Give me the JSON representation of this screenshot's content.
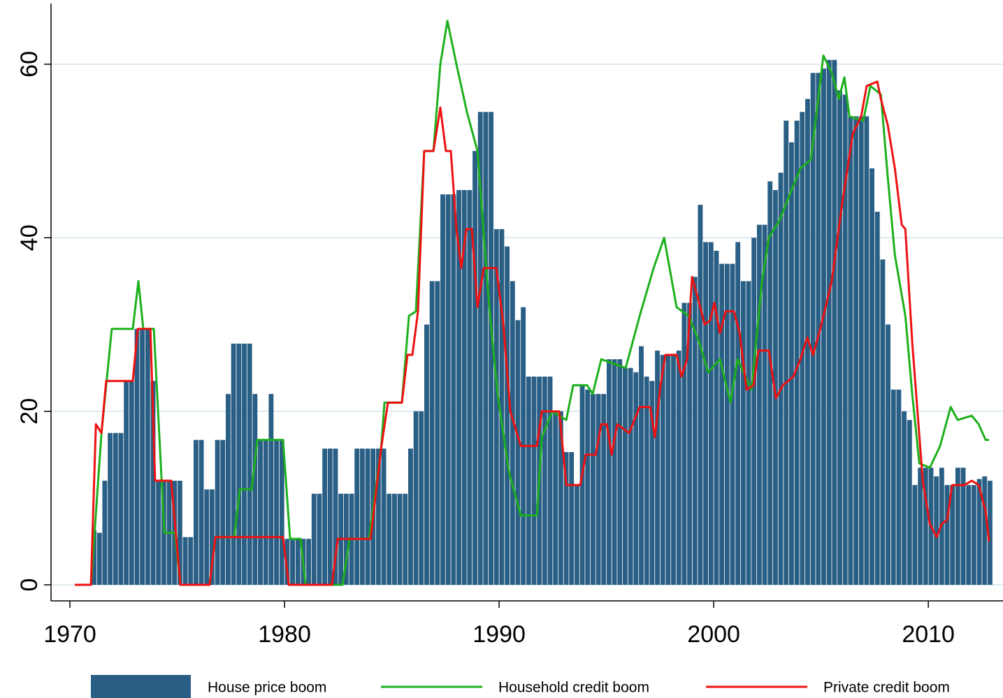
{
  "chart_data": {
    "type": "combo",
    "xlim": [
      1969.12,
      2013.48
    ],
    "xticks": [
      1970,
      1980,
      1990,
      2000,
      2010
    ],
    "ylim": [
      -1.85,
      67
    ],
    "yticks": [
      0,
      20,
      40,
      60
    ],
    "grid": true,
    "legend": "bottom",
    "series": [
      {
        "name": "House price boom",
        "type": "bar",
        "color": "#2a5f85",
        "x": [
          1971,
          1971.25,
          1971.5,
          1971.75,
          1972,
          1972.25,
          1972.5,
          1972.75,
          1973,
          1973.25,
          1973.5,
          1973.75,
          1974,
          1974.25,
          1974.5,
          1974.75,
          1975,
          1975.25,
          1975.5,
          1975.75,
          1976,
          1976.25,
          1976.5,
          1976.75,
          1977,
          1977.25,
          1977.5,
          1977.75,
          1978,
          1978.25,
          1978.5,
          1978.75,
          1979,
          1979.25,
          1979.5,
          1979.75,
          1980,
          1980.25,
          1980.5,
          1980.75,
          1981,
          1981.25,
          1981.5,
          1981.75,
          1982,
          1982.25,
          1982.5,
          1982.75,
          1983,
          1983.25,
          1983.5,
          1983.75,
          1984,
          1984.25,
          1984.5,
          1984.75,
          1985,
          1985.25,
          1985.5,
          1985.75,
          1986,
          1986.25,
          1986.5,
          1986.75,
          1987,
          1987.25,
          1987.5,
          1987.75,
          1988,
          1988.25,
          1988.5,
          1988.75,
          1989,
          1989.25,
          1989.5,
          1989.75,
          1990,
          1990.25,
          1990.5,
          1990.75,
          1991,
          1991.25,
          1991.5,
          1991.75,
          1992,
          1992.25,
          1992.5,
          1992.75,
          1993,
          1993.25,
          1993.5,
          1993.75,
          1994,
          1994.25,
          1994.5,
          1994.75,
          1995,
          1995.25,
          1995.5,
          1995.75,
          1996,
          1996.25,
          1996.5,
          1996.75,
          1997,
          1997.25,
          1997.5,
          1997.75,
          1998,
          1998.25,
          1998.5,
          1998.75,
          1999,
          1999.25,
          1999.5,
          1999.75,
          2000,
          2000.25,
          2000.5,
          2000.75,
          2001,
          2001.25,
          2001.5,
          2001.75,
          2002,
          2002.25,
          2002.5,
          2002.75,
          2003,
          2003.25,
          2003.5,
          2003.75,
          2004,
          2004.25,
          2004.5,
          2004.75,
          2005,
          2005.25,
          2005.5,
          2005.75,
          2006,
          2006.25,
          2006.5,
          2006.75,
          2007,
          2007.25,
          2007.5,
          2007.75,
          2008,
          2008.25,
          2008.5,
          2008.75,
          2009,
          2009.25,
          2009.5,
          2009.75,
          2010,
          2010.25,
          2010.5,
          2010.75,
          2011,
          2011.25,
          2011.5,
          2011.75,
          2012,
          2012.25,
          2012.5,
          2012.75
        ],
        "values": [
          6.3,
          6,
          12,
          17.5,
          17.5,
          17.5,
          23.5,
          23.5,
          29.5,
          29.5,
          29.5,
          23.5,
          12,
          12,
          12,
          12,
          12,
          5.5,
          5.5,
          16.7,
          16.7,
          11,
          11,
          16.7,
          16.7,
          22,
          27.8,
          27.8,
          27.8,
          27.8,
          22,
          16.7,
          16.7,
          22,
          16.7,
          16.7,
          5.3,
          5.3,
          5.3,
          5.3,
          5.3,
          10.5,
          10.5,
          15.7,
          15.7,
          15.7,
          10.5,
          10.5,
          10.5,
          15.7,
          15.7,
          15.7,
          15.7,
          15.7,
          15.7,
          10.5,
          10.5,
          10.5,
          10.5,
          15.7,
          20,
          20,
          30,
          35,
          35,
          45,
          45,
          45,
          45.5,
          45.5,
          45.5,
          50,
          54.5,
          54.5,
          54.5,
          41,
          41,
          39,
          35,
          30.5,
          32,
          24,
          24,
          24,
          24,
          24,
          20,
          20,
          15.3,
          15.3,
          11.5,
          23,
          22.5,
          22,
          22,
          22,
          26,
          26,
          26,
          25,
          25,
          24.5,
          27.5,
          24,
          23.5,
          27,
          26.5,
          26.5,
          26.5,
          27,
          32.5,
          32.5,
          35.5,
          43.8,
          39.5,
          39.5,
          38.5,
          37,
          37,
          37,
          39.5,
          35,
          35,
          40,
          41.5,
          41.5,
          46.5,
          45.5,
          47.5,
          53.5,
          51,
          53.5,
          54.5,
          56,
          59,
          59,
          59.5,
          60.5,
          60.5,
          57,
          56.5,
          54,
          54,
          54,
          54,
          48,
          43,
          37.5,
          30,
          22.5,
          22.5,
          20,
          19,
          11.5,
          13.5,
          13.5,
          13.5,
          12.5,
          13.5,
          11.5,
          11.5,
          13.5,
          13.5,
          11.5,
          11.5,
          12.2,
          12.5,
          12
        ]
      },
      {
        "name": "Household credit boom",
        "type": "line",
        "color": "#1db01d",
        "x": [
          1970.23,
          1970.98,
          1971.47,
          1971.95,
          1972.93,
          1973.19,
          1973.42,
          1973.91,
          1974.4,
          1974.89,
          1975.15,
          1976.51,
          1976.78,
          1977.65,
          1977.92,
          1978.47,
          1978.73,
          1979.93,
          1980.26,
          1980.75,
          1980.98,
          1982.7,
          1983.03,
          1983.94,
          1984.5,
          1984.66,
          1985.47,
          1985.8,
          1986.12,
          1986.51,
          1986.94,
          1987.26,
          1987.59,
          1988.01,
          1988.5,
          1988.99,
          1989.54,
          1989.93,
          1990.46,
          1991.01,
          1991.76,
          1991.99,
          1992.48,
          1993.13,
          1993.45,
          1994.1,
          1994.36,
          1994.76,
          1995.9,
          1996.55,
          1997.2,
          1997.69,
          1998.27,
          1998.83,
          1999.32,
          1999.74,
          2000.29,
          2000.78,
          2001.11,
          2001.76,
          2002.25,
          2002.57,
          2003.06,
          2003.55,
          2004.04,
          2004.53,
          2005.11,
          2005.5,
          2005.83,
          2006.09,
          2006.32,
          2006.97,
          2007.3,
          2007.79,
          2008.11,
          2008.44,
          2008.93,
          2009.25,
          2009.58,
          2010.07,
          2010.55,
          2011.04,
          2011.37,
          2012.02,
          2012.35,
          2012.67,
          2012.83
        ],
        "values": [
          0,
          0,
          17.5,
          29.5,
          29.5,
          35,
          29.5,
          29.5,
          6,
          6,
          0,
          0,
          5.5,
          5.5,
          11,
          11,
          16.7,
          16.7,
          5.3,
          5.3,
          0,
          0,
          5.3,
          5.3,
          15.7,
          21,
          21,
          31,
          31.5,
          50,
          50,
          60,
          65,
          60,
          54.5,
          50,
          32,
          22,
          13,
          8,
          8,
          17,
          20,
          19,
          23,
          23,
          22,
          26,
          25,
          31,
          36.5,
          40,
          32,
          31,
          28,
          24.5,
          26,
          21,
          26,
          22.5,
          35,
          40,
          42,
          45,
          48,
          49,
          61,
          59,
          56,
          58.5,
          54,
          53.5,
          57.5,
          56.5,
          47,
          38,
          31,
          22,
          14,
          13.5,
          16,
          20.5,
          19,
          19.5,
          18.5,
          16.7,
          16.7
        ]
      },
      {
        "name": "Private credit boom",
        "type": "line",
        "color": "#ee1111",
        "x": [
          1970.23,
          1970.98,
          1971.21,
          1971.47,
          1971.69,
          1972.93,
          1973.16,
          1973.75,
          1973.97,
          1974.72,
          1975.15,
          1976.51,
          1976.78,
          1979.93,
          1980.2,
          1982.21,
          1982.48,
          1984.01,
          1984.5,
          1984.82,
          1985.47,
          1985.73,
          1985.96,
          1986.22,
          1986.51,
          1986.94,
          1987.26,
          1987.52,
          1987.75,
          1988.01,
          1988.24,
          1988.47,
          1988.73,
          1988.99,
          1989.28,
          1989.87,
          1990.2,
          1990.52,
          1991.01,
          1991.76,
          1991.99,
          1992.8,
          1993.13,
          1993.78,
          1994.04,
          1994.5,
          1994.76,
          1995.02,
          1995.24,
          1995.5,
          1996.06,
          1996.55,
          1997.04,
          1997.26,
          1997.52,
          1997.75,
          1998.27,
          1998.5,
          1998.76,
          1998.99,
          1999.32,
          1999.58,
          1999.84,
          2000.03,
          2000.29,
          2000.55,
          2000.94,
          2001.21,
          2001.53,
          2001.86,
          2002.08,
          2002.57,
          2002.9,
          2003.22,
          2003.71,
          2004.04,
          2004.36,
          2004.63,
          2005.02,
          2005.5,
          2005.99,
          2006.48,
          2006.87,
          2007.13,
          2007.62,
          2007.79,
          2008.11,
          2008.44,
          2008.76,
          2008.93,
          2009.25,
          2009.74,
          2010.07,
          2010.39,
          2010.62,
          2010.88,
          2011.11,
          2011.69,
          2012.02,
          2012.35,
          2012.67,
          2012.83
        ],
        "values": [
          0,
          0,
          18.5,
          17.5,
          23.5,
          23.5,
          29.5,
          29.5,
          12,
          12,
          0,
          0,
          5.5,
          5.5,
          0,
          0,
          5.3,
          5.3,
          15.7,
          21,
          21,
          26.5,
          26.5,
          31.5,
          50,
          50,
          55,
          50,
          50,
          41,
          36.5,
          41,
          41,
          32,
          36.5,
          36.5,
          30,
          20,
          16,
          16,
          20,
          20,
          11.5,
          11.5,
          15,
          15,
          18.5,
          18.5,
          15,
          18.5,
          17.5,
          20.5,
          20.5,
          17,
          23,
          26.5,
          26.5,
          24,
          26,
          35.5,
          32.5,
          30,
          30.5,
          32.5,
          29,
          31.5,
          31.5,
          29,
          22.5,
          23,
          27,
          27,
          21.5,
          23,
          24,
          26,
          28.5,
          26.5,
          30,
          35,
          44,
          52,
          54,
          57.5,
          58,
          56,
          53,
          48,
          41.5,
          41,
          28,
          12,
          7,
          5.5,
          7,
          7.5,
          11.5,
          11.5,
          12,
          11.5,
          8.5,
          5
        ]
      }
    ]
  }
}
